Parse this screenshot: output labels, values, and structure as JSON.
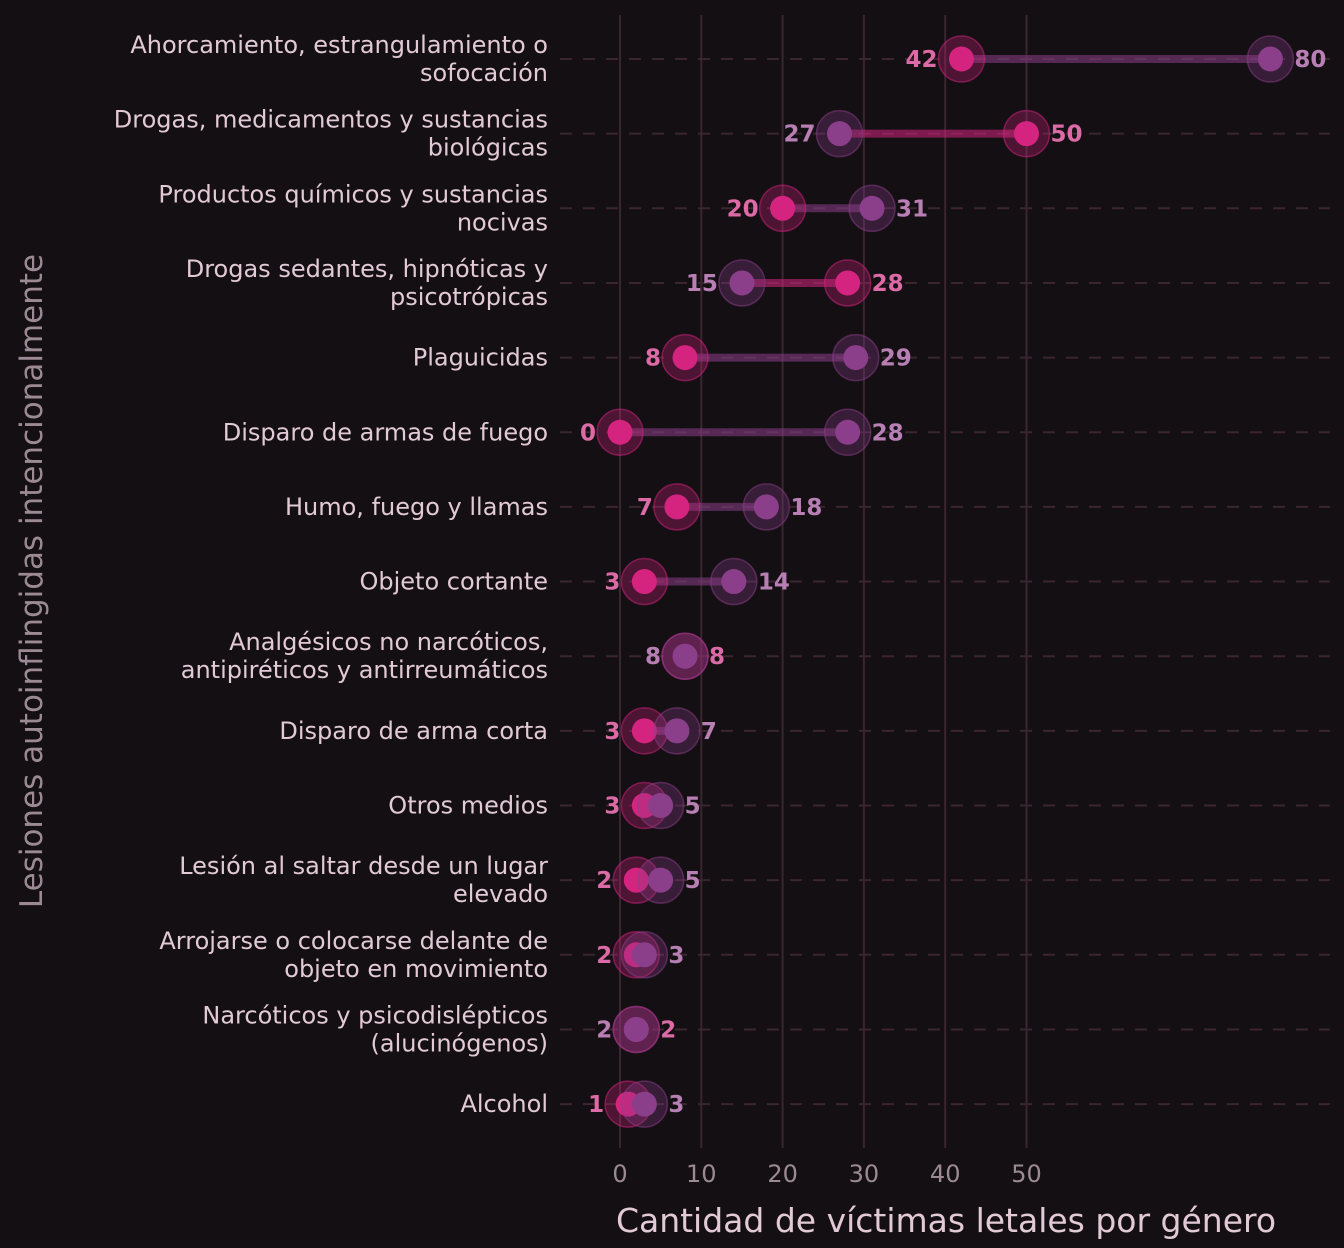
{
  "chart_data": {
    "type": "dumbbell",
    "title": "",
    "xlabel": "Cantidad de víctimas letales por género",
    "ylabel": "Lesiones autoinflingidas intencionalmente",
    "x_ticks": [
      0,
      10,
      20,
      30,
      40,
      50
    ],
    "x_tick_labels": [
      "0",
      "10",
      "20",
      "30",
      "40",
      "50"
    ],
    "xlim": [
      0,
      80
    ],
    "grid": true,
    "legend": "none",
    "categories": [
      [
        "Ahorcamiento, estrangulamiento o",
        "sofocación"
      ],
      [
        "Drogas, medicamentos y sustancias",
        "biológicas"
      ],
      [
        "Productos químicos y sustancias",
        "nocivas"
      ],
      [
        "Drogas sedantes, hipnóticas y",
        "psicotrópicas"
      ],
      [
        "Plaguicidas"
      ],
      [
        "Disparo de armas de fuego"
      ],
      [
        "Humo, fuego y llamas"
      ],
      [
        "Objeto cortante"
      ],
      [
        "Analgésicos no narcóticos,",
        "antipiréticos y antirreumáticos"
      ],
      [
        "Disparo de arma corta"
      ],
      [
        "Otros medios"
      ],
      [
        "Lesión al saltar desde un lugar",
        "elevado"
      ],
      [
        "Arrojarse o colocarse delante de",
        "objeto en movimiento"
      ],
      [
        "Narcóticos y psicodislépticos",
        "(alucinógenos)"
      ],
      [
        "Alcohol"
      ]
    ],
    "series": [
      {
        "name": "rosa",
        "color": "#d4247f",
        "label_color": "#dc6aa6",
        "values": [
          42,
          50,
          20,
          28,
          8,
          0,
          7,
          3,
          8,
          3,
          3,
          2,
          2,
          2,
          1
        ]
      },
      {
        "name": "violeta",
        "color": "#8b3f8a",
        "label_color": "#b77fb3",
        "values": [
          80,
          27,
          31,
          15,
          29,
          28,
          18,
          14,
          8,
          7,
          5,
          5,
          3,
          2,
          3
        ]
      }
    ]
  }
}
